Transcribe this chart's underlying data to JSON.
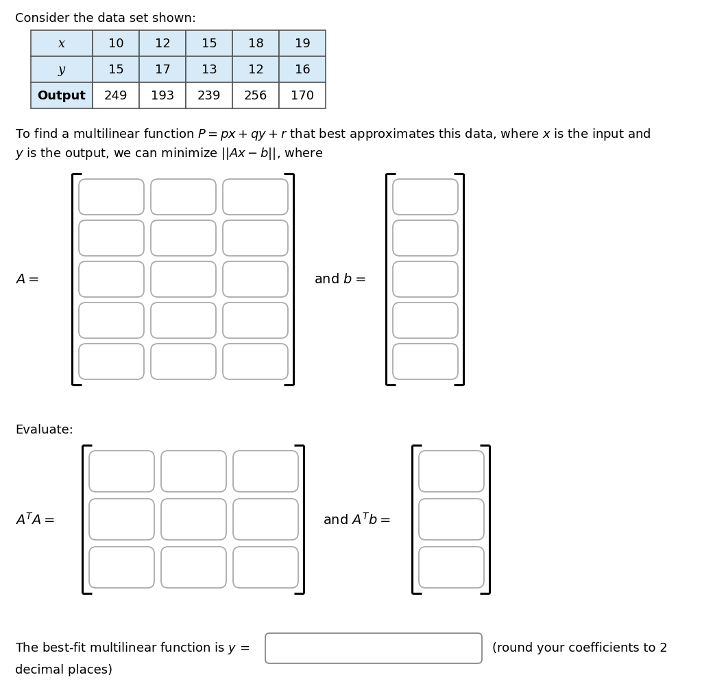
{
  "title_text": "Consider the data set shown:",
  "table": {
    "row_labels": [
      "x",
      "y",
      "Output"
    ],
    "col_values": [
      [
        10,
        15,
        249
      ],
      [
        12,
        17,
        193
      ],
      [
        15,
        13,
        239
      ],
      [
        18,
        12,
        256
      ],
      [
        19,
        16,
        170
      ]
    ],
    "header_bg": "#d6eaf8",
    "data_bg": "#ffffff"
  },
  "para1": "To find a multilinear function $P = px + qy + r$ that best approximates this data, where $x$ is the input and",
  "para2": "$y$ is the output, we can minimize $||Ax - b||$, where",
  "A_label": "$A =$",
  "b_label": "and $b =$",
  "evaluate_text": "Evaluate:",
  "ATA_label": "$A^T A =$",
  "ATb_label": "and $A^T b =$",
  "best_fit_prefix": "The best-fit multilinear function is $y$ =",
  "best_fit_suffix": "(round your coefficients to 2",
  "decimal_text": "decimal places)",
  "bg_color": "#ffffff",
  "text_color": "#000000",
  "box_edge_color": "#aaaaaa",
  "bracket_color": "#000000"
}
